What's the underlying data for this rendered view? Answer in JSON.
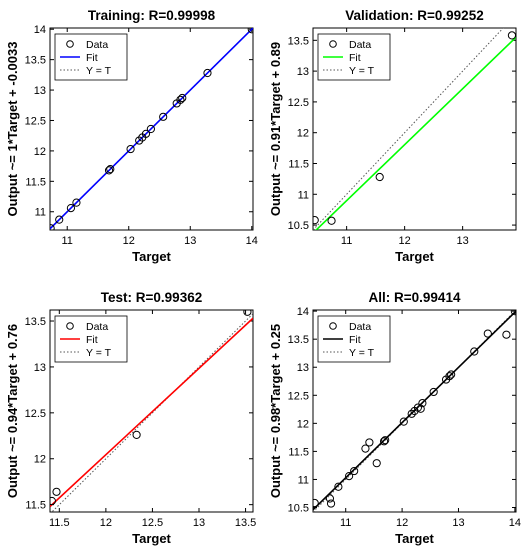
{
  "chart_data": [
    {
      "type": "scatter",
      "title": "Training: R=0.99998",
      "xlabel": "Target",
      "ylabel": "Output ~= 1*Target + -0.0033",
      "xlim": [
        10.72,
        14.02
      ],
      "ylim": [
        10.7,
        14.02
      ],
      "xticks": [
        11,
        12,
        13,
        14
      ],
      "yticks": [
        11,
        11.5,
        12,
        12.5,
        13,
        13.5,
        14
      ],
      "fit_color": "#0000ff",
      "fit_line": [
        [
          10.72,
          10.72
        ],
        [
          14.02,
          14.02
        ]
      ],
      "identity_line": [
        [
          10.72,
          10.72
        ],
        [
          14.02,
          14.02
        ]
      ],
      "legend": {
        "location": "top-left",
        "entries": [
          "Data",
          "Fit",
          "Y = T"
        ]
      },
      "points": [
        [
          10.73,
          10.73
        ],
        [
          10.87,
          10.87
        ],
        [
          11.06,
          11.06
        ],
        [
          11.15,
          11.15
        ],
        [
          11.68,
          11.68
        ],
        [
          11.7,
          11.7
        ],
        [
          12.03,
          12.03
        ],
        [
          12.17,
          12.17
        ],
        [
          12.22,
          12.22
        ],
        [
          12.28,
          12.28
        ],
        [
          12.36,
          12.36
        ],
        [
          12.56,
          12.56
        ],
        [
          12.78,
          12.78
        ],
        [
          12.84,
          12.84
        ],
        [
          12.87,
          12.87
        ],
        [
          13.28,
          13.28
        ],
        [
          14.0,
          14.0
        ]
      ]
    },
    {
      "type": "scatter",
      "title": "Validation: R=0.99252",
      "xlabel": "Target",
      "ylabel": "Output ~= 0.91*Target + 0.89",
      "xlim": [
        10.42,
        13.92
      ],
      "ylim": [
        10.42,
        13.7
      ],
      "xticks": [
        11,
        12,
        13
      ],
      "yticks": [
        10.5,
        11,
        11.5,
        12,
        12.5,
        13,
        13.5
      ],
      "fit_color": "#00ff00",
      "fit_line": [
        [
          10.42,
          10.37
        ],
        [
          13.92,
          13.55
        ]
      ],
      "identity_line": [
        [
          10.42,
          10.42
        ],
        [
          13.92,
          13.92
        ]
      ],
      "legend": {
        "location": "top-left",
        "entries": [
          "Data",
          "Fit",
          "Y = T"
        ]
      },
      "points": [
        [
          10.45,
          10.58
        ],
        [
          10.74,
          10.57
        ],
        [
          11.57,
          11.28
        ],
        [
          13.85,
          13.58
        ]
      ]
    },
    {
      "type": "scatter",
      "title": "Test: R=0.99362",
      "xlabel": "Target",
      "ylabel": "Output ~= 0.94*Target + 0.76",
      "xlim": [
        11.4,
        13.58
      ],
      "ylim": [
        11.42,
        13.62
      ],
      "xticks": [
        11.5,
        12,
        12.5,
        13,
        13.5
      ],
      "yticks": [
        11.5,
        12,
        12.5,
        13,
        13.5
      ],
      "fit_color": "#ff0000",
      "fit_line": [
        [
          11.4,
          11.48
        ],
        [
          13.58,
          13.53
        ]
      ],
      "identity_line": [
        [
          11.4,
          11.4
        ],
        [
          13.58,
          13.58
        ]
      ],
      "legend": {
        "location": "top-left",
        "entries": [
          "Data",
          "Fit",
          "Y = T"
        ]
      },
      "points": [
        [
          11.42,
          11.54
        ],
        [
          11.47,
          11.64
        ],
        [
          12.33,
          12.26
        ],
        [
          13.52,
          13.6
        ]
      ]
    },
    {
      "type": "scatter",
      "title": "All: R=0.99414",
      "xlabel": "Target",
      "ylabel": "Output ~= 0.98*Target + 0.25",
      "xlim": [
        10.42,
        14.02
      ],
      "ylim": [
        10.42,
        14.02
      ],
      "xticks": [
        11,
        12,
        13,
        14
      ],
      "yticks": [
        10.5,
        11,
        11.5,
        12,
        12.5,
        13,
        13.5,
        14
      ],
      "fit_color": "#000000",
      "fit_line": [
        [
          10.42,
          10.46
        ],
        [
          14.02,
          14.0
        ]
      ],
      "identity_line": [
        [
          10.42,
          10.42
        ],
        [
          14.02,
          14.02
        ]
      ],
      "legend": {
        "location": "top-left",
        "entries": [
          "Data",
          "Fit",
          "Y = T"
        ]
      },
      "points": [
        [
          10.45,
          10.58
        ],
        [
          10.72,
          10.66
        ],
        [
          10.74,
          10.57
        ],
        [
          10.87,
          10.87
        ],
        [
          11.06,
          11.06
        ],
        [
          11.15,
          11.15
        ],
        [
          11.35,
          11.55
        ],
        [
          11.42,
          11.66
        ],
        [
          11.55,
          11.29
        ],
        [
          11.68,
          11.68
        ],
        [
          11.7,
          11.7
        ],
        [
          12.03,
          12.03
        ],
        [
          12.17,
          12.17
        ],
        [
          12.22,
          12.22
        ],
        [
          12.28,
          12.28
        ],
        [
          12.33,
          12.26
        ],
        [
          12.36,
          12.36
        ],
        [
          12.56,
          12.56
        ],
        [
          12.78,
          12.78
        ],
        [
          12.84,
          12.84
        ],
        [
          12.87,
          12.87
        ],
        [
          13.28,
          13.28
        ],
        [
          13.52,
          13.6
        ],
        [
          13.85,
          13.58
        ],
        [
          14.0,
          14.0
        ]
      ]
    }
  ]
}
